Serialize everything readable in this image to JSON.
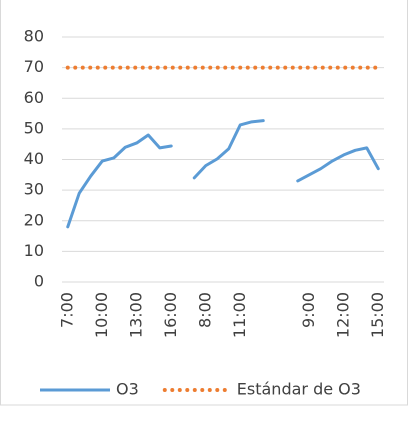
{
  "chart_data": {
    "type": "line",
    "categories": [
      "7:00",
      null,
      null,
      "10:00",
      null,
      null,
      "13:00",
      null,
      null,
      "16:00",
      null,
      null,
      "8:00",
      null,
      null,
      "11:00",
      null,
      null,
      null,
      null,
      null,
      "9:00",
      null,
      null,
      "12:00",
      null,
      null,
      "15:00"
    ],
    "series": [
      {
        "name": "O3",
        "color": "#5b9bd5",
        "style": "solid",
        "values": [
          18,
          29,
          34.6,
          39.5,
          40.5,
          44,
          45.4,
          48,
          43.8,
          44.4,
          null,
          34,
          38,
          40.2,
          43.5,
          51.3,
          52.3,
          52.7,
          null,
          null,
          33,
          35,
          37,
          39.5,
          41.5,
          43,
          43.8,
          37
        ]
      },
      {
        "name": "Estándar de O3",
        "color": "#ed7d31",
        "style": "dotted",
        "values": [
          70,
          70,
          70,
          70,
          70,
          70,
          70,
          70,
          70,
          70,
          70,
          70,
          70,
          70,
          70,
          70,
          70,
          70,
          70,
          70,
          70,
          70,
          70,
          70,
          70,
          70,
          70,
          70
        ]
      }
    ],
    "ylim": [
      0,
      80
    ],
    "yticks": [
      0,
      10,
      20,
      30,
      40,
      50,
      60,
      70,
      80
    ],
    "grid": true,
    "legend": "bottom"
  }
}
